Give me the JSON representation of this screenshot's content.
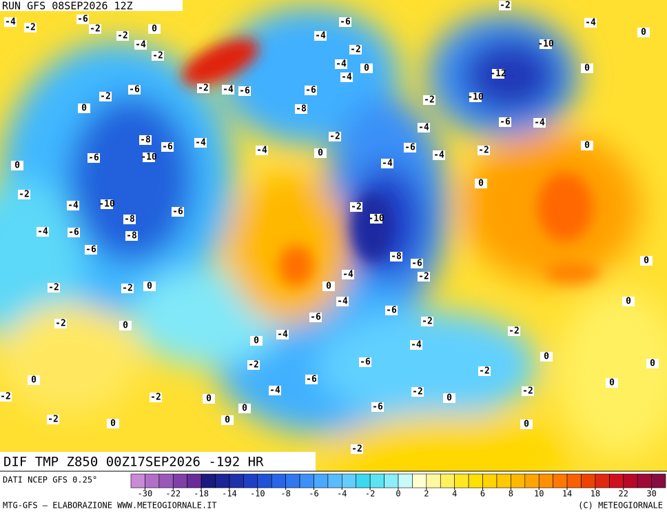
{
  "header": {
    "title": "RUN GFS 08SEP2026 12Z"
  },
  "map": {
    "title": "DIF TMP Z850 00Z17SEP2026 -192 HR",
    "contour_labels": [
      -4,
      -2,
      -6,
      -2,
      -2,
      0,
      -4,
      -2,
      -6,
      -2,
      0,
      -2,
      -4,
      -6,
      -6,
      -4,
      -2,
      -4,
      0,
      -4,
      -6,
      -8,
      -2,
      -10,
      -12,
      -10,
      -4,
      0,
      -6,
      -4,
      0,
      -2,
      0,
      -4,
      -6,
      -4,
      -4,
      -2,
      0,
      -4,
      -4,
      -8,
      -6,
      -10,
      -6,
      0,
      -2,
      -4,
      -10,
      -8,
      -6,
      -4,
      -6,
      -8,
      -6,
      -10,
      -2,
      -8,
      -6,
      -4,
      -2,
      0,
      -4,
      -6,
      -2,
      -6,
      -4,
      -6,
      -6,
      -4,
      -2,
      -6,
      -2,
      -2,
      -2,
      0,
      0,
      0,
      0,
      -2,
      0,
      -2,
      -2,
      0,
      0,
      -2,
      -2,
      -2,
      0,
      0,
      -2,
      0,
      0,
      -4,
      0,
      0,
      -2,
      0,
      0,
      0,
      -2
    ]
  },
  "legend": {
    "source": "DATI NCEP GFS 0.25°",
    "ticks": [
      -30,
      -22,
      -18,
      -14,
      -10,
      -8,
      -6,
      -4,
      -2,
      0,
      2,
      4,
      6,
      8,
      10,
      14,
      18,
      22,
      30
    ],
    "colors": [
      "#c98ad6",
      "#b070c8",
      "#9a58b8",
      "#8040a8",
      "#6a2c98",
      "#1a1a80",
      "#1c2496",
      "#1e30ac",
      "#2040c4",
      "#2252d8",
      "#2866e8",
      "#3078f0",
      "#3c90f8",
      "#4aa8ff",
      "#58bcff",
      "#64ccff",
      "#3cd8f0",
      "#5ce4f4",
      "#8ceef8",
      "#c8fafc",
      "#ffffd0",
      "#fff8a0",
      "#fff060",
      "#ffe820",
      "#ffe000",
      "#ffd400",
      "#ffc800",
      "#ffb800",
      "#ffa400",
      "#ff9000",
      "#ff7800",
      "#f86000",
      "#ee4400",
      "#e02810",
      "#d01020",
      "#b80828",
      "#a00838",
      "#880c40"
    ]
  },
  "footer": {
    "left": "MTG-GFS – ELABORAZIONE WWW.METEOGIORNALE.IT",
    "right": "(C) METEOGIORNALE"
  }
}
